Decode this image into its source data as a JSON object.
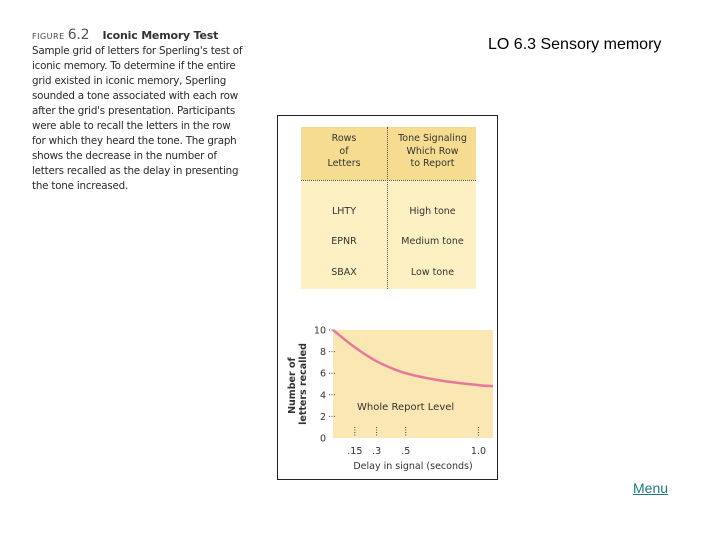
{
  "caption": {
    "figure_label": "FIGURE",
    "figure_number": "6.2",
    "title": "Iconic Memory Test",
    "text": "Sample grid of letters for Sperling's test of iconic memory. To determine if the entire grid existed in iconic memory, Sperling sounded a tone associated with each row after the grid's presentation. Participants were able to recall the letters in the row for which they heard the tone. The graph shows the decrease in the number of letters recalled as the delay in presenting the tone increased."
  },
  "slide_title": "LO 6.3 Sensory memory",
  "table": {
    "header_rows": [
      "Rows",
      "of",
      "Letters"
    ],
    "header_tone": [
      "Tone Signaling",
      "Which Row",
      "to Report"
    ],
    "rows": [
      {
        "letters": "LHTY",
        "tone": "High tone"
      },
      {
        "letters": "EPNR",
        "tone": "Medium tone"
      },
      {
        "letters": "SBAX",
        "tone": "Low tone"
      }
    ]
  },
  "chart_data": {
    "type": "line",
    "xlabel": "Delay in signal (seconds)",
    "ylabel": "Number of letters recalled",
    "x_ticks": [
      ".15",
      ".3",
      ".5",
      "1.0"
    ],
    "y_ticks": [
      0,
      2,
      4,
      6,
      8,
      10
    ],
    "xlim": [
      0,
      1.1
    ],
    "ylim": [
      0,
      10
    ],
    "annotation": "Whole Report Level",
    "series": [
      {
        "x": [
          0.0,
          0.15,
          0.3,
          0.5,
          0.75,
          1.0,
          1.1
        ],
        "y": [
          10,
          8.4,
          7.1,
          6.0,
          5.3,
          4.9,
          4.8
        ]
      }
    ],
    "colors": {
      "line": "#e8789a",
      "background": "#fbe7b3"
    }
  },
  "menu_label": "Menu"
}
